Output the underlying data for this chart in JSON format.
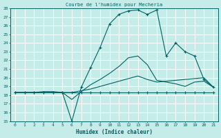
{
  "title": "Courbe de l'humidex pour Mecheria",
  "xlabel": "Humidex (Indice chaleur)",
  "xlim": [
    -0.5,
    21.5
  ],
  "ylim": [
    15,
    28
  ],
  "xticks": [
    0,
    1,
    2,
    3,
    4,
    5,
    6,
    7,
    8,
    9,
    10,
    11,
    12,
    13,
    14,
    15,
    16,
    17,
    18,
    19,
    20,
    21
  ],
  "yticks": [
    15,
    16,
    17,
    18,
    19,
    20,
    21,
    22,
    23,
    24,
    25,
    26,
    27,
    28
  ],
  "background_color": "#c5ece8",
  "grid_color": "#ffffff",
  "line_color": "#006060",
  "lines": [
    {
      "x": [
        0,
        1,
        2,
        3,
        4,
        5,
        6,
        7,
        8,
        9,
        10,
        11,
        12,
        13,
        14,
        15,
        16,
        17,
        18,
        19,
        20,
        21
      ],
      "y": [
        18.3,
        18.3,
        18.3,
        18.3,
        18.3,
        18.3,
        18.3,
        18.3,
        18.3,
        18.3,
        18.3,
        18.3,
        18.3,
        18.3,
        18.3,
        18.3,
        18.3,
        18.3,
        18.3,
        18.3,
        18.3,
        18.3
      ],
      "marker": "+"
    },
    {
      "x": [
        0,
        1,
        2,
        3,
        4,
        5,
        6,
        7,
        8,
        9,
        10,
        11,
        12,
        13,
        14,
        15,
        16,
        17,
        18,
        19,
        20,
        21
      ],
      "y": [
        18.3,
        18.3,
        18.3,
        18.3,
        18.3,
        18.3,
        18.3,
        18.5,
        18.7,
        19.0,
        19.3,
        19.6,
        19.9,
        20.2,
        19.8,
        19.5,
        19.6,
        19.7,
        19.8,
        19.9,
        20.0,
        18.9
      ],
      "marker": null
    },
    {
      "x": [
        0,
        1,
        2,
        3,
        4,
        5,
        6,
        7,
        8,
        9,
        10,
        11,
        12,
        13,
        14,
        15,
        16,
        17,
        18,
        19,
        20,
        21
      ],
      "y": [
        18.3,
        18.3,
        18.3,
        18.4,
        18.4,
        18.3,
        17.5,
        18.4,
        19.2,
        19.8,
        20.5,
        21.3,
        22.3,
        22.5,
        21.5,
        19.7,
        19.5,
        19.3,
        19.0,
        19.5,
        19.6,
        18.9
      ],
      "marker": null
    },
    {
      "x": [
        0,
        1,
        2,
        3,
        4,
        5,
        6,
        7,
        8,
        9,
        10,
        11,
        12,
        13,
        14,
        15,
        16,
        17,
        18,
        19,
        20,
        21
      ],
      "y": [
        18.3,
        18.3,
        18.3,
        18.3,
        18.3,
        18.3,
        15.0,
        18.9,
        21.2,
        23.5,
        26.2,
        27.3,
        27.7,
        27.8,
        27.3,
        27.8,
        22.5,
        24.0,
        23.0,
        22.5,
        19.8,
        18.9
      ],
      "marker": "+"
    }
  ]
}
